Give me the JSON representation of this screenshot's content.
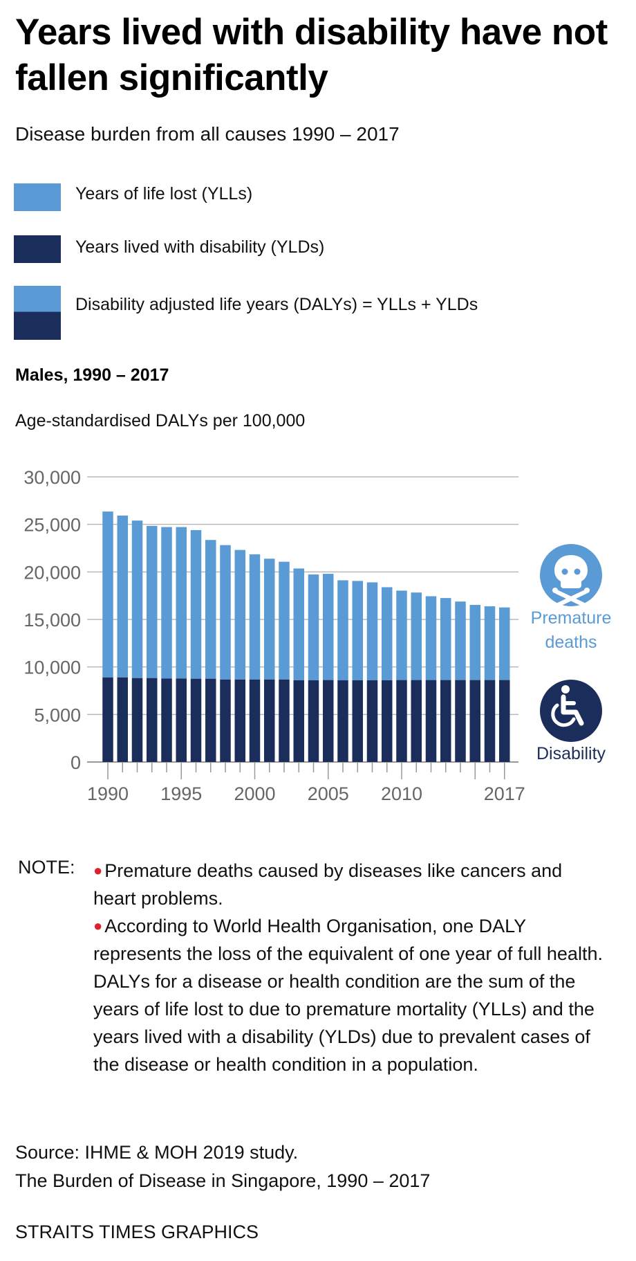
{
  "header": {
    "title": "Years lived with disability have not fallen significantly",
    "subtitle": "Disease burden from all causes 1990 – 2017"
  },
  "legend": [
    {
      "label": "Years of life lost (YLLs)",
      "colors": [
        "#5b9bd5"
      ]
    },
    {
      "label": "Years lived with disability (YLDs)",
      "colors": [
        "#1b2d5a"
      ]
    },
    {
      "label": "Disability adjusted life years (DALYs) = YLLs + YLDs",
      "colors": [
        "#5b9bd5",
        "#1b2d5a"
      ]
    }
  ],
  "section_title": "Males, 1990 – 2017",
  "unit_label": "Age-standardised DALYs per 100,000",
  "colors": {
    "yll": "#5b9bd5",
    "yld": "#1b2d5a",
    "grid": "#b8b8b8",
    "axis_text": "#666666",
    "bullet": "#e0202a"
  },
  "icons": [
    {
      "name": "skull-crossbones-icon",
      "label_lines": [
        "Premature",
        "deaths"
      ],
      "color": "#5b9bd5"
    },
    {
      "name": "wheelchair-icon",
      "label_lines": [
        "Disability"
      ],
      "color": "#1b2d5a"
    }
  ],
  "chart_data": {
    "type": "bar",
    "stacked": true,
    "title": "Males, 1990 – 2017",
    "ylabel": "Age-standardised DALYs per 100,000",
    "xlabel": "",
    "ylim": [
      0,
      30000
    ],
    "yticks": [
      0,
      5000,
      10000,
      15000,
      20000,
      25000,
      30000
    ],
    "ytick_labels": [
      "0",
      "5,000",
      "10,000",
      "15,000",
      "20,000",
      "25,000",
      "30,000"
    ],
    "grid": true,
    "legend_position": "top",
    "categories": [
      1990,
      1991,
      1992,
      1993,
      1994,
      1995,
      1996,
      1997,
      1998,
      1999,
      2000,
      2001,
      2002,
      2003,
      2004,
      2005,
      2006,
      2007,
      2008,
      2009,
      2010,
      2011,
      2012,
      2013,
      2014,
      2015,
      2016,
      2017
    ],
    "xtick_labels": [
      {
        "year": 1990,
        "label": "1990"
      },
      {
        "year": 1995,
        "label": "1995"
      },
      {
        "year": 2000,
        "label": "2000"
      },
      {
        "year": 2005,
        "label": "2005"
      },
      {
        "year": 2010,
        "label": "2010"
      },
      {
        "year": 2017,
        "label": "2017"
      }
    ],
    "major_ticks": [
      1990,
      1995,
      2000,
      2005,
      2010,
      2015,
      2017
    ],
    "series": [
      {
        "name": "Years lived with disability (YLDs)",
        "values": [
          8900,
          8900,
          8830,
          8830,
          8780,
          8780,
          8760,
          8760,
          8680,
          8680,
          8680,
          8680,
          8680,
          8600,
          8600,
          8620,
          8600,
          8600,
          8600,
          8600,
          8620,
          8620,
          8620,
          8620,
          8620,
          8620,
          8620,
          8620
        ]
      },
      {
        "name": "Years of life lost (YLLs)",
        "values": [
          17450,
          17030,
          16570,
          16010,
          15940,
          15940,
          15640,
          14600,
          14140,
          13630,
          13170,
          12710,
          12390,
          11760,
          11130,
          11180,
          10520,
          10450,
          10300,
          9790,
          9410,
          9210,
          8820,
          8630,
          8260,
          7910,
          7760,
          7640
        ]
      }
    ],
    "totals_dalys": [
      26350,
      25930,
      25400,
      24840,
      24720,
      24720,
      24400,
      23360,
      22820,
      22310,
      21850,
      21390,
      21070,
      20360,
      19730,
      19800,
      19120,
      19050,
      18900,
      18390,
      18030,
      17830,
      17440,
      17250,
      16880,
      16530,
      16380,
      16260
    ]
  },
  "note": {
    "label": "NOTE:",
    "items": [
      "Premature deaths caused by diseases like cancers and heart problems.",
      "According to World Health Organisation, one DALY represents the loss of the equivalent of one year of full health. DALYs for a disease or health condition are the sum of the years of life lost to due to premature mortality (YLLs) and the years lived with a disability (YLDs) due to prevalent cases of the disease or health condition in a population."
    ]
  },
  "footer": {
    "source_line1": "Source: IHME & MOH 2019 study.",
    "source_line2": "The Burden of Disease in Singapore, 1990 – 2017",
    "credit": "STRAITS TIMES GRAPHICS"
  }
}
